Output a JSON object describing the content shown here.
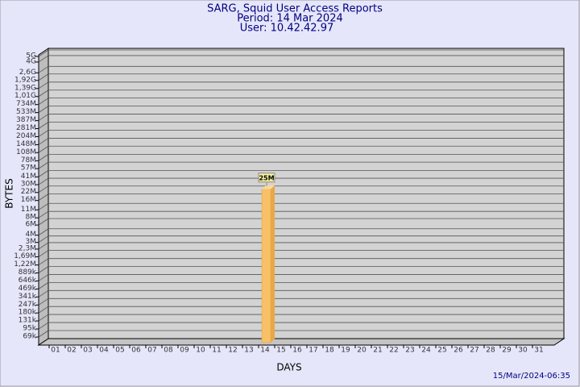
{
  "chart_data": {
    "type": "bar",
    "title": "SARG, Squid User Access Reports",
    "period": "Period: 14 Mar 2024",
    "user": "User: 10.42.42.97",
    "x_label": "DAYS",
    "y_label": "BYTES",
    "footer": "15/Mar/2024-06:35",
    "categories": [
      "01",
      "02",
      "03",
      "04",
      "05",
      "06",
      "07",
      "08",
      "09",
      "10",
      "11",
      "12",
      "13",
      "14",
      "15",
      "16",
      "17",
      "18",
      "19",
      "20",
      "21",
      "22",
      "23",
      "24",
      "25",
      "26",
      "27",
      "28",
      "29",
      "30",
      "31"
    ],
    "values": [
      null,
      null,
      null,
      null,
      null,
      null,
      null,
      null,
      null,
      null,
      null,
      null,
      null,
      25000000,
      null,
      null,
      null,
      null,
      null,
      null,
      null,
      null,
      null,
      null,
      null,
      null,
      null,
      null,
      null,
      null,
      null
    ],
    "value_labels": [
      null,
      null,
      null,
      null,
      null,
      null,
      null,
      null,
      null,
      null,
      null,
      null,
      null,
      "25M",
      null,
      null,
      null,
      null,
      null,
      null,
      null,
      null,
      null,
      null,
      null,
      null,
      null,
      null,
      null,
      null,
      null
    ],
    "color": "#f8c067",
    "log_scale": true,
    "ylim": [
      50000,
      5000000000
    ],
    "yticks": [
      {
        "value": 69000,
        "label": "69k"
      },
      {
        "value": 95000,
        "label": "95k"
      },
      {
        "value": 131000,
        "label": "131k"
      },
      {
        "value": 180000,
        "label": "180k"
      },
      {
        "value": 247000,
        "label": "247k"
      },
      {
        "value": 341000,
        "label": "341k"
      },
      {
        "value": 469000,
        "label": "469k"
      },
      {
        "value": 646000,
        "label": "646k"
      },
      {
        "value": 889000,
        "label": "889k"
      },
      {
        "value": 1220000,
        "label": "1,22M"
      },
      {
        "value": 1690000,
        "label": "1,69M"
      },
      {
        "value": 2300000,
        "label": "2,3M"
      },
      {
        "value": 3000000,
        "label": "3M"
      },
      {
        "value": 4000000,
        "label": "4M"
      },
      {
        "value": 6000000,
        "label": "6M"
      },
      {
        "value": 8000000,
        "label": "8M"
      },
      {
        "value": 11000000,
        "label": "11M"
      },
      {
        "value": 16000000,
        "label": "16M"
      },
      {
        "value": 22000000,
        "label": "22M"
      },
      {
        "value": 30000000,
        "label": "30M"
      },
      {
        "value": 41000000,
        "label": "41M"
      },
      {
        "value": 57000000,
        "label": "57M"
      },
      {
        "value": 78000000,
        "label": "78M"
      },
      {
        "value": 108000000,
        "label": "108M"
      },
      {
        "value": 148000000,
        "label": "148M"
      },
      {
        "value": 204000000,
        "label": "204M"
      },
      {
        "value": 281000000,
        "label": "281M"
      },
      {
        "value": 387000000,
        "label": "387M"
      },
      {
        "value": 533000000,
        "label": "533M"
      },
      {
        "value": 734000000,
        "label": "734M"
      },
      {
        "value": 1010000000,
        "label": "1,01G"
      },
      {
        "value": 1390000000,
        "label": "1,39G"
      },
      {
        "value": 1920000000,
        "label": "1,92G"
      },
      {
        "value": 2600000000,
        "label": "2,6G"
      },
      {
        "value": 4000000000,
        "label": "4G"
      },
      {
        "value": 5000000000,
        "label": "5G"
      }
    ],
    "grid": true
  }
}
